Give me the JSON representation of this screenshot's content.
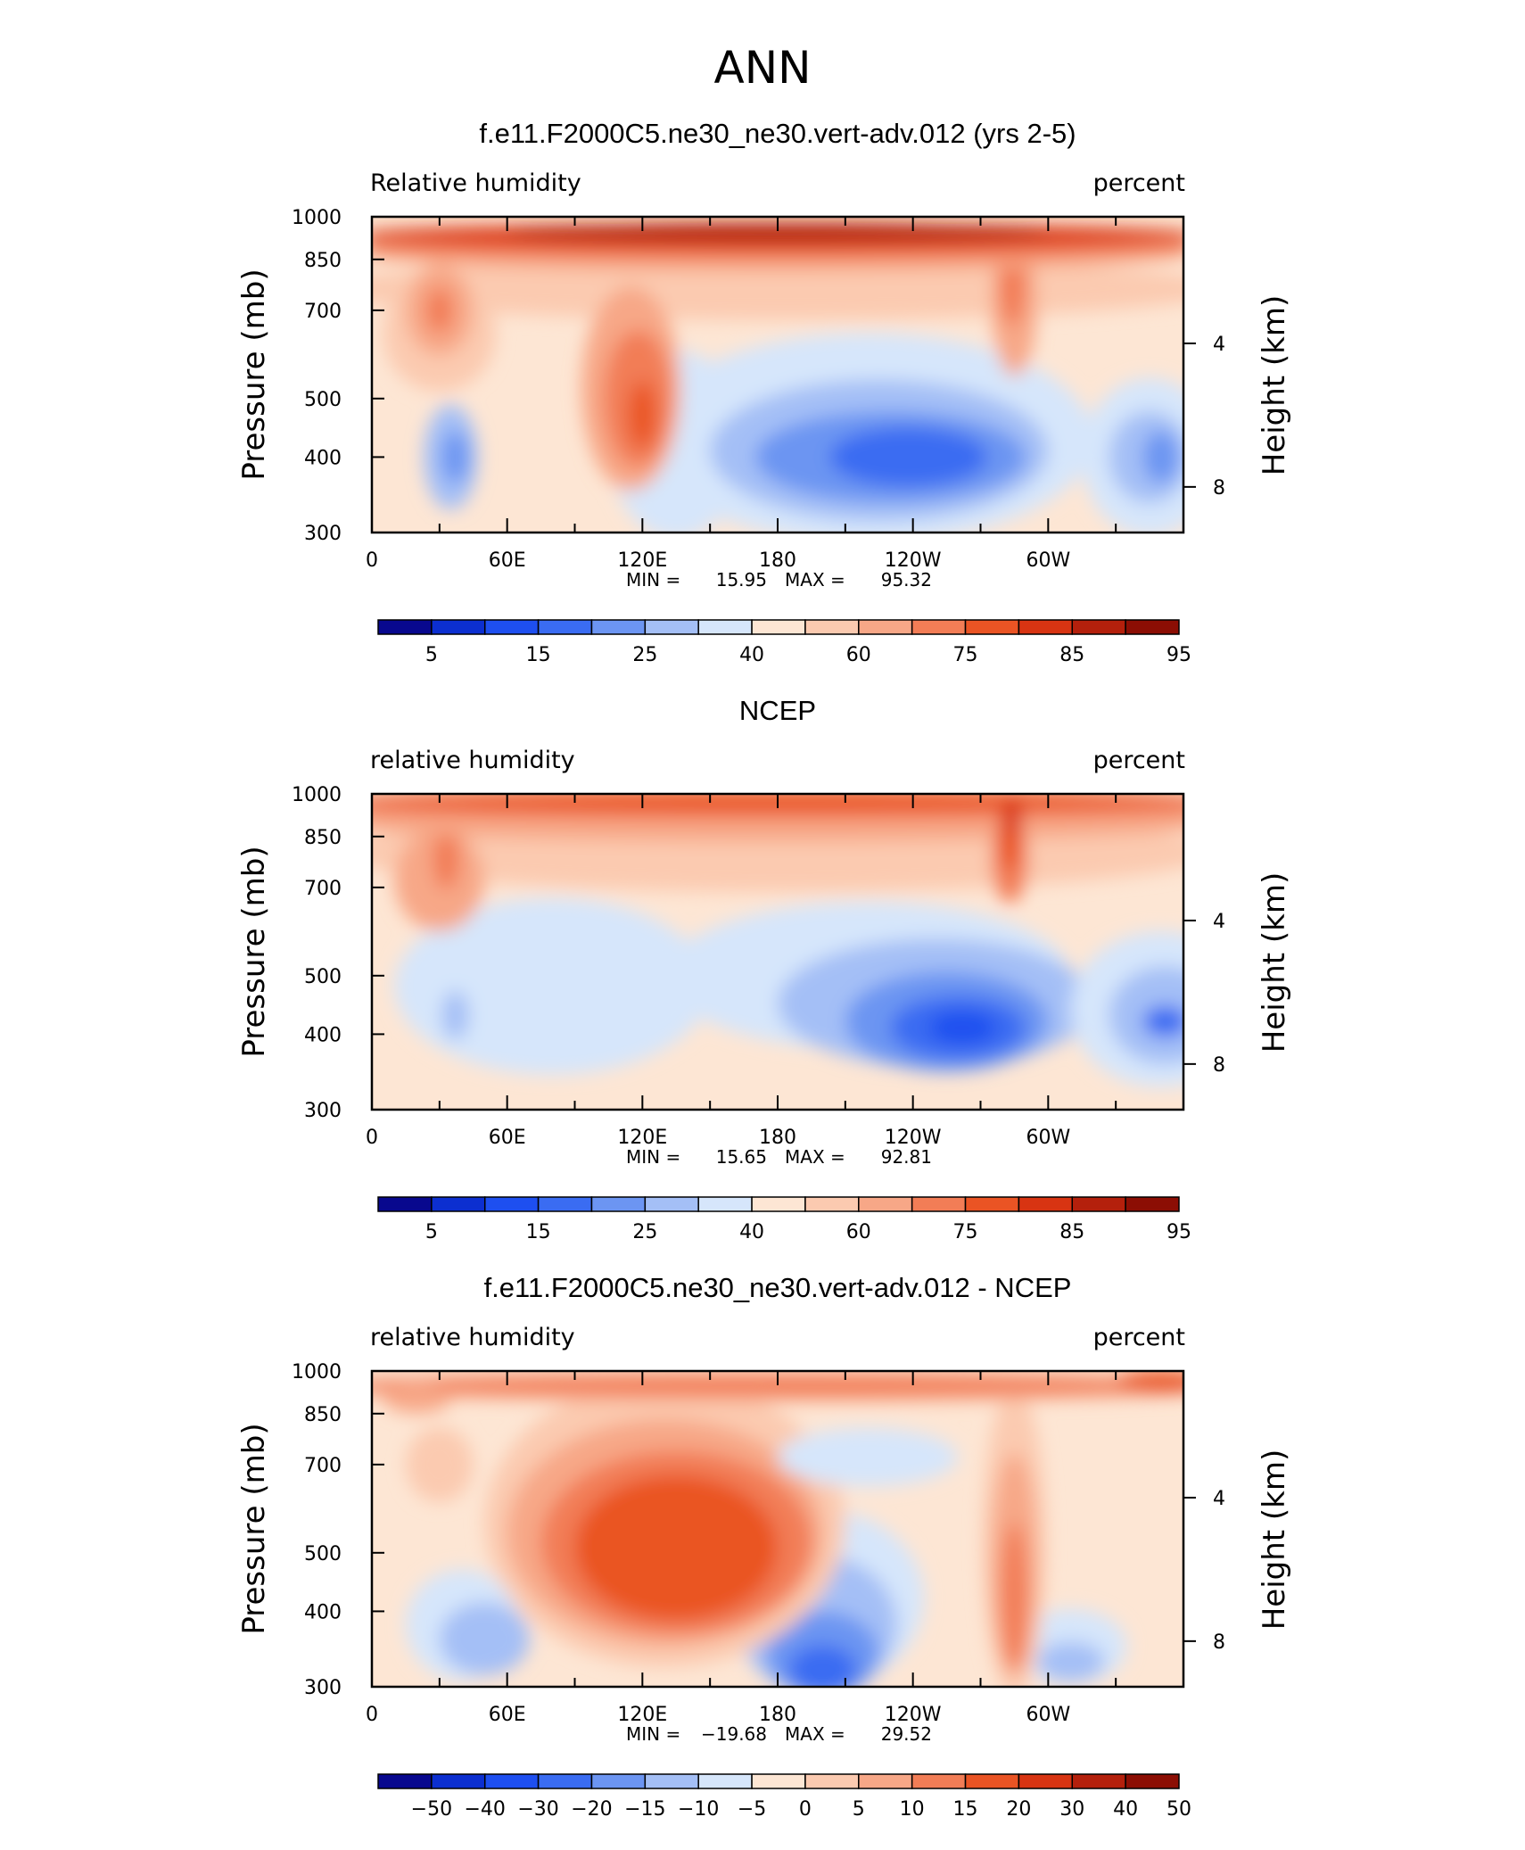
{
  "page": {
    "main_title": "ANN"
  },
  "chart_data": [
    {
      "type": "heatmap",
      "title": "f.e11.F2000C5.ne30_ne30.vert-adv.012 (yrs 2-5)",
      "left_label": "Relative humidity",
      "right_label": "percent",
      "ylabel": "Pressure (mb)",
      "y2label": "Height (km)",
      "xticks": [
        "0",
        "60E",
        "120E",
        "180",
        "120W",
        "60W"
      ],
      "yticks": [
        "300",
        "400",
        "500",
        "700",
        "850",
        "1000"
      ],
      "y2ticks": [
        "8",
        "4"
      ],
      "ylim": [
        1000,
        300
      ],
      "xlim": [
        0,
        360
      ],
      "min_label": "MIN =",
      "min": "15.95",
      "max_label": "MAX =",
      "max": "95.32",
      "colorbar_labels": [
        "5",
        "15",
        "25",
        "40",
        "60",
        "75",
        "85",
        "95"
      ],
      "grid": false
    },
    {
      "type": "heatmap",
      "title": "NCEP",
      "left_label": "relative humidity",
      "right_label": "percent",
      "ylabel": "Pressure (mb)",
      "y2label": "Height (km)",
      "xticks": [
        "0",
        "60E",
        "120E",
        "180",
        "120W",
        "60W"
      ],
      "yticks": [
        "300",
        "400",
        "500",
        "700",
        "850",
        "1000"
      ],
      "y2ticks": [
        "8",
        "4"
      ],
      "ylim": [
        1000,
        300
      ],
      "xlim": [
        0,
        360
      ],
      "min_label": "MIN =",
      "min": "15.65",
      "max_label": "MAX =",
      "max": "92.81",
      "colorbar_labels": [
        "5",
        "15",
        "25",
        "40",
        "60",
        "75",
        "85",
        "95"
      ],
      "grid": false
    },
    {
      "type": "heatmap",
      "title": "f.e11.F2000C5.ne30_ne30.vert-adv.012 - NCEP",
      "left_label": "relative humidity",
      "right_label": "percent",
      "ylabel": "Pressure (mb)",
      "y2label": "Height (km)",
      "xticks": [
        "0",
        "60E",
        "120E",
        "180",
        "120W",
        "60W"
      ],
      "yticks": [
        "300",
        "400",
        "500",
        "700",
        "850",
        "1000"
      ],
      "y2ticks": [
        "8",
        "4"
      ],
      "ylim": [
        1000,
        300
      ],
      "xlim": [
        0,
        360
      ],
      "min_label": "MIN =",
      "min": "−19.68",
      "max_label": "MAX =",
      "max": "29.52",
      "colorbar_labels": [
        "−50",
        "−40",
        "−30",
        "−20",
        "−15",
        "−10",
        "−5",
        "0",
        "5",
        "10",
        "15",
        "20",
        "30",
        "40",
        "50"
      ],
      "grid": false
    }
  ],
  "colormap": [
    "#08088e",
    "#0c2fd0",
    "#1e4ff0",
    "#3a6cf2",
    "#6c95f2",
    "#a4bff6",
    "#d6e6fb",
    "#fde6d4",
    "#fbcab0",
    "#f7a787",
    "#f27d56",
    "#ea5424",
    "#d83412",
    "#b4200c",
    "#8c0e04"
  ]
}
